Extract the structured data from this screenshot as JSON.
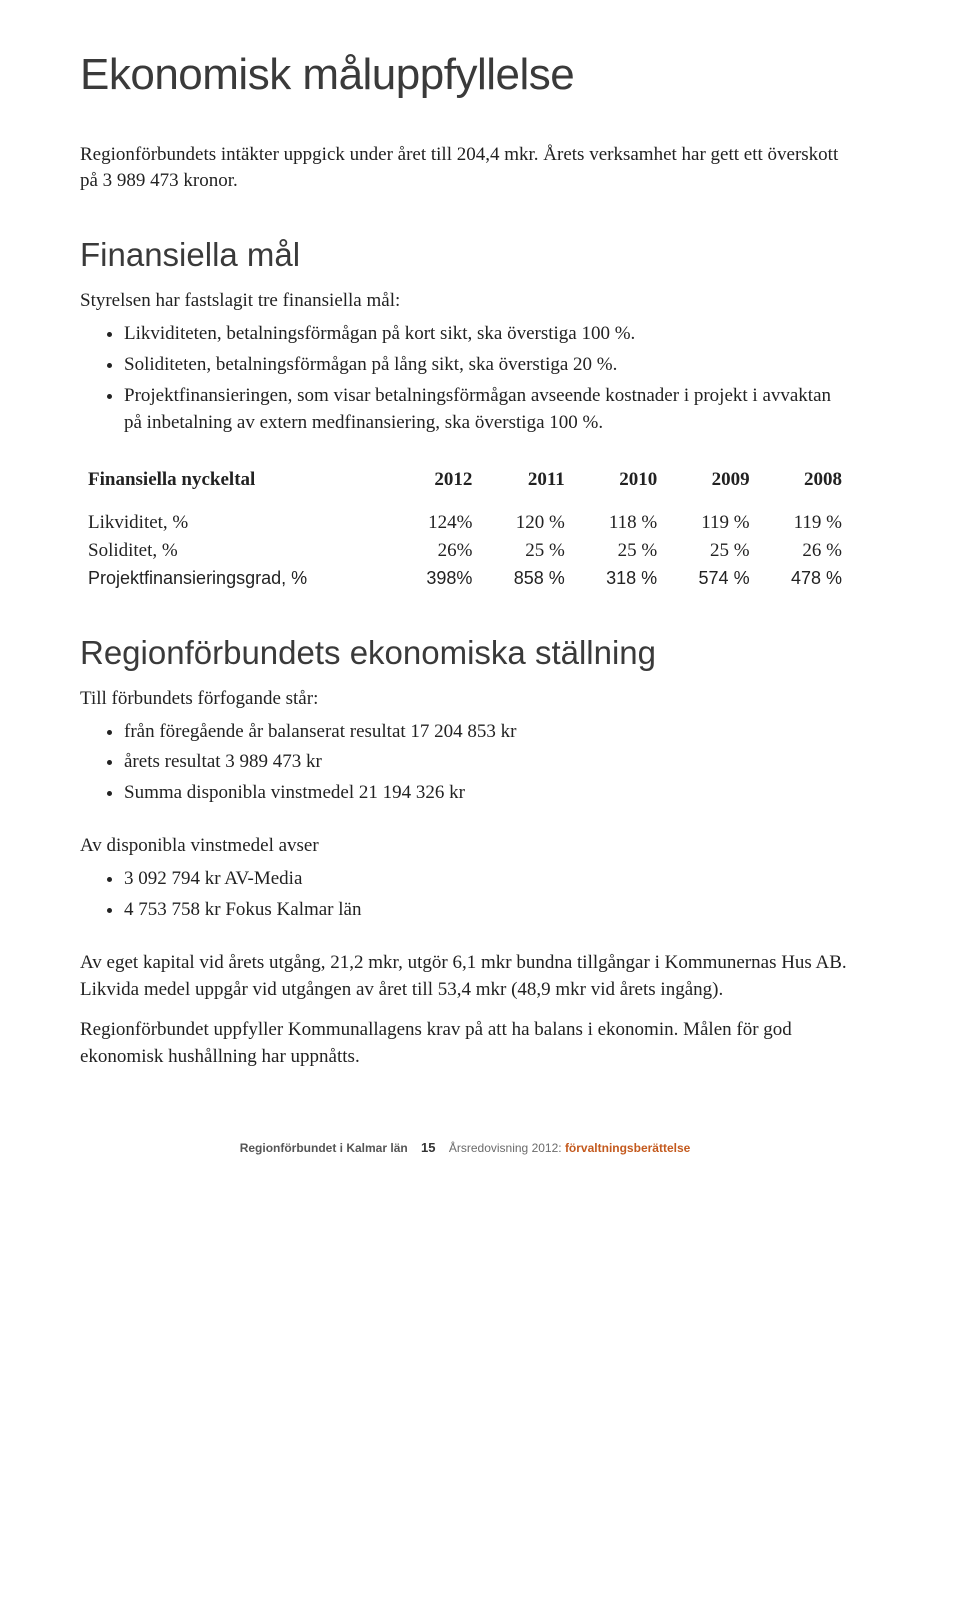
{
  "h1": "Ekonomisk måluppfyllelse",
  "intro": "Regionförbundets intäkter uppgick under året till 204,4 mkr. Årets verksamhet har gett ett överskott på 3 989 473 kronor.",
  "h2a": "Finansiella mål",
  "lead_a": "Styrelsen har fastslagit tre finansiella mål:",
  "bullets_a": [
    "Likviditeten, betalningsförmågan på kort sikt, ska överstiga 100 %.",
    "Soliditeten, betalningsförmågan på lång sikt, ska överstiga 20 %.",
    "Projektfinansieringen, som visar betalningsförmågan avseende kostnader i projekt i avvaktan på inbetalning av extern medfinansiering, ska överstiga 100 %."
  ],
  "table": {
    "header_label": "Finansiella nyckeltal",
    "years": [
      "2012",
      "2011",
      "2010",
      "2009",
      "2008"
    ],
    "rows": [
      {
        "label": "Likviditet, %",
        "cells": [
          "124%",
          "120 %",
          "118 %",
          "119 %",
          "119 %"
        ],
        "alt": false
      },
      {
        "label": "Soliditet, %",
        "cells": [
          "26%",
          "25 %",
          "25 %",
          "25 %",
          "26 %"
        ],
        "alt": false
      },
      {
        "label": "Projektfinansieringsgrad, %",
        "cells": [
          "398%",
          "858 %",
          "318 %",
          "574 %",
          "478 %"
        ],
        "alt": true
      }
    ],
    "col_widths": [
      "40%",
      "12%",
      "12%",
      "12%",
      "12%",
      "12%"
    ]
  },
  "h2b": "Regionförbundets ekonomiska ställning",
  "lead_b": "Till förbundets förfogande står:",
  "bullets_b": [
    "från föregående år balanserat resultat 17 204 853 kr",
    "årets resultat 3 989 473 kr",
    "Summa disponibla vinstmedel 21 194 326 kr"
  ],
  "lead_c": "Av disponibla vinstmedel avser",
  "bullets_c": [
    "3 092 794 kr AV-Media",
    "4 753 758 kr Fokus Kalmar län"
  ],
  "para1": "Av eget kapital vid årets utgång, 21,2 mkr, utgör 6,1 mkr bundna tillgångar i Kommunernas Hus AB. Likvida medel uppgår vid utgången av året till 53,4 mkr (48,9 mkr vid årets ingång).",
  "para2": "Regionförbundet uppfyller Kommunallagens krav på att ha balans i ekonomin. Målen för god ekonomisk hushållning har uppnåtts.",
  "footer": {
    "left": "Regionförbundet i Kalmar län",
    "page": "15",
    "right_a": "Årsredovisning 2012:",
    "right_b": "förvaltningsberättelse"
  }
}
